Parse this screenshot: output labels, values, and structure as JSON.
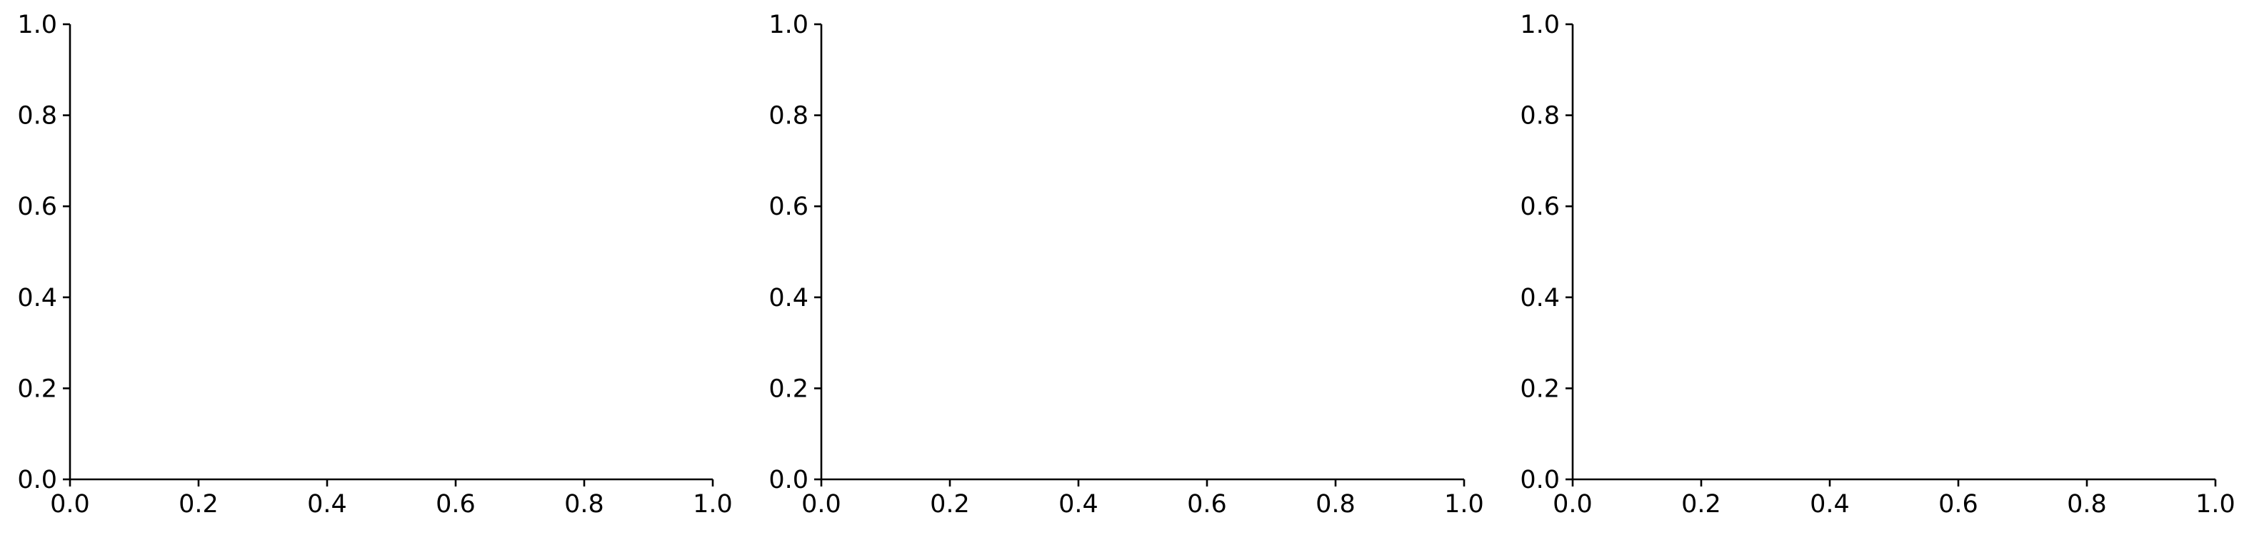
{
  "chart_data": [
    {
      "type": "line",
      "title": "",
      "xlabel": "",
      "ylabel": "",
      "xlim": [
        0.0,
        1.0
      ],
      "ylim": [
        0.0,
        1.0
      ],
      "xticks": [
        "0.0",
        "0.2",
        "0.4",
        "0.6",
        "0.8",
        "1.0"
      ],
      "yticks": [
        "0.0",
        "0.2",
        "0.4",
        "0.6",
        "0.8",
        "1.0"
      ],
      "series": [],
      "grid": false,
      "spines": [
        "left",
        "bottom"
      ]
    },
    {
      "type": "line",
      "title": "",
      "xlabel": "",
      "ylabel": "",
      "xlim": [
        0.0,
        1.0
      ],
      "ylim": [
        0.0,
        1.0
      ],
      "xticks": [
        "0.0",
        "0.2",
        "0.4",
        "0.6",
        "0.8",
        "1.0"
      ],
      "yticks": [
        "0.0",
        "0.2",
        "0.4",
        "0.6",
        "0.8",
        "1.0"
      ],
      "series": [],
      "grid": false,
      "spines": [
        "left",
        "bottom"
      ]
    },
    {
      "type": "line",
      "title": "",
      "xlabel": "",
      "ylabel": "",
      "xlim": [
        0.0,
        1.0
      ],
      "ylim": [
        0.0,
        1.0
      ],
      "xticks": [
        "0.0",
        "0.2",
        "0.4",
        "0.6",
        "0.8",
        "1.0"
      ],
      "yticks": [
        "0.0",
        "0.2",
        "0.4",
        "0.6",
        "0.8",
        "1.0"
      ],
      "series": [],
      "grid": false,
      "spines": [
        "left",
        "bottom"
      ]
    }
  ]
}
